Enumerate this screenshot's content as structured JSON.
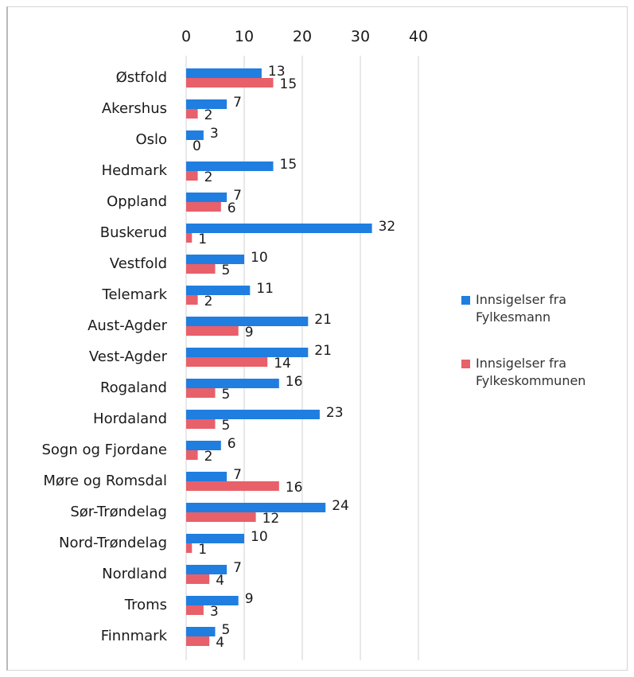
{
  "chart_data": {
    "type": "bar",
    "orientation": "horizontal",
    "categories": [
      "Østfold",
      "Akershus",
      "Oslo",
      "Hedmark",
      "Oppland",
      "Buskerud",
      "Vestfold",
      "Telemark",
      "Aust-Agder",
      "Vest-Agder",
      "Rogaland",
      "Hordaland",
      "Sogn og Fjordane",
      "Møre og Romsdal",
      "Sør-Trøndelag",
      "Nord-Trøndelag",
      "Nordland",
      "Troms",
      "Finnmark"
    ],
    "series": [
      {
        "name": "Innsigelser fra Fylkesmann",
        "color": "#1f7ee0",
        "values": [
          13,
          7,
          3,
          15,
          7,
          32,
          10,
          11,
          21,
          21,
          16,
          23,
          6,
          7,
          24,
          10,
          7,
          9,
          5
        ]
      },
      {
        "name": "Innsigelser fra Fylkeskommunen",
        "color": "#e8606a",
        "values": [
          15,
          2,
          0,
          2,
          6,
          1,
          5,
          2,
          9,
          14,
          5,
          5,
          2,
          16,
          12,
          1,
          4,
          3,
          4
        ]
      }
    ],
    "xlim": [
      0,
      40
    ],
    "xticks": [
      "0",
      "10",
      "20",
      "30",
      "40"
    ],
    "xaxis_position": "top",
    "grid": true,
    "legend_position": "right"
  }
}
